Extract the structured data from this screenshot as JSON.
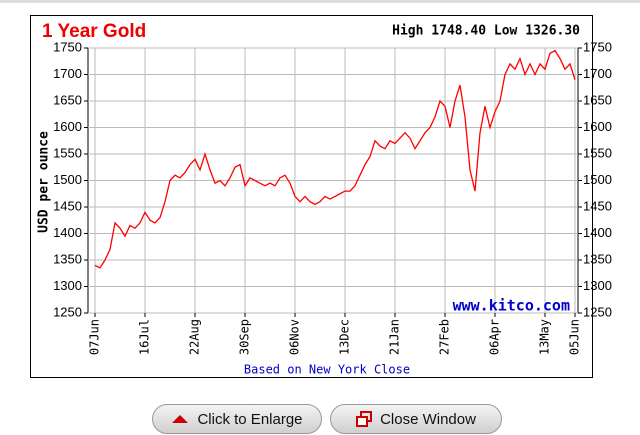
{
  "chart_data": {
    "type": "line",
    "title": "1 Year Gold",
    "annotation": "High 1748.40 Low 1326.30",
    "ylabel": "USD per ounce",
    "watermark": "www.kitco.com",
    "footnote": "Based on New York Close",
    "categories": [
      "07Jun",
      null,
      null,
      null,
      null,
      null,
      null,
      null,
      null,
      null,
      "16Jul",
      null,
      null,
      null,
      null,
      null,
      null,
      null,
      null,
      null,
      "22Aug",
      null,
      null,
      null,
      null,
      null,
      null,
      null,
      null,
      null,
      "30Sep",
      null,
      null,
      null,
      null,
      null,
      null,
      null,
      null,
      null,
      "06Nov",
      null,
      null,
      null,
      null,
      null,
      null,
      null,
      null,
      null,
      "13Dec",
      null,
      null,
      null,
      null,
      null,
      null,
      null,
      null,
      null,
      "21Jan",
      null,
      null,
      null,
      null,
      null,
      null,
      null,
      null,
      null,
      "27Feb",
      null,
      null,
      null,
      null,
      null,
      null,
      null,
      null,
      null,
      "06Apr",
      null,
      null,
      null,
      null,
      null,
      null,
      null,
      null,
      null,
      "13May",
      null,
      null,
      null,
      null,
      null,
      "05Jun"
    ],
    "series": [
      {
        "name": "Gold",
        "color": "#ff0000",
        "values": [
          1340,
          1335,
          1350,
          1370,
          1420,
          1410,
          1395,
          1415,
          1410,
          1420,
          1440,
          1425,
          1420,
          1430,
          1460,
          1500,
          1510,
          1505,
          1515,
          1530,
          1540,
          1520,
          1550,
          1520,
          1495,
          1500,
          1490,
          1505,
          1525,
          1530,
          1490,
          1505,
          1500,
          1495,
          1490,
          1495,
          1490,
          1505,
          1510,
          1495,
          1470,
          1460,
          1470,
          1460,
          1455,
          1460,
          1470,
          1465,
          1470,
          1475,
          1480,
          1480,
          1490,
          1510,
          1530,
          1545,
          1575,
          1565,
          1560,
          1575,
          1570,
          1580,
          1590,
          1580,
          1560,
          1575,
          1590,
          1600,
          1620,
          1650,
          1640,
          1600,
          1650,
          1680,
          1620,
          1520,
          1480,
          1590,
          1640,
          1600,
          1630,
          1650,
          1700,
          1720,
          1710,
          1730,
          1700,
          1720,
          1700,
          1720,
          1710,
          1740,
          1745,
          1730,
          1710,
          1720,
          1690
        ]
      }
    ],
    "ylim": [
      1250,
      1750
    ],
    "yticks": [
      1250,
      1300,
      1350,
      1400,
      1450,
      1500,
      1550,
      1600,
      1650,
      1700,
      1750
    ],
    "y2lim": [
      1250,
      1750
    ],
    "y2ticks": [
      1250,
      1300,
      1350,
      1400,
      1450,
      1500,
      1550,
      1600,
      1650,
      1700,
      1750
    ],
    "grid": true
  },
  "buttons": [
    "Click to Enlarge",
    "Close Window"
  ]
}
